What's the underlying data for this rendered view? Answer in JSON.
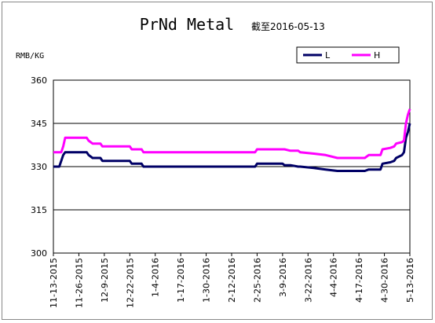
{
  "chart_data": {
    "type": "line",
    "title": "PrNd Metal",
    "subtitle": "截至2016-05-13",
    "y_label": "RMB/KG",
    "x": [
      "11-13-2015",
      "11-16-2015",
      "11-17-2015",
      "11-18-2015",
      "11-19-2015",
      "11-30-2015",
      "12-1-2015",
      "12-3-2015",
      "12-7-2015",
      "12-8-2015",
      "12-22-2015",
      "12-23-2015",
      "12-28-2015",
      "12-29-2015",
      "2-24-2016",
      "2-25-2016",
      "3-9-2016",
      "3-10-2016",
      "3-13-2016",
      "3-17-2016",
      "3-18-2016",
      "3-25-2016",
      "3-31-2016",
      "4-6-2016",
      "4-20-2016",
      "4-22-2016",
      "4-28-2016",
      "4-29-2016",
      "5-3-2016",
      "5-5-2016",
      "5-6-2016",
      "5-9-2016",
      "5-10-2016",
      "5-11-2016",
      "5-12-2016",
      "5-13-2016"
    ],
    "series": [
      {
        "name": "L",
        "color": "#000066",
        "values": [
          330,
          330,
          332,
          334,
          335,
          335,
          334,
          333,
          333,
          332,
          332,
          331,
          331,
          330,
          330,
          331,
          331,
          330.5,
          330.5,
          330,
          330,
          329.5,
          329,
          328.5,
          328.5,
          329,
          329,
          331,
          331.5,
          332,
          333,
          334,
          335,
          340,
          342,
          345
        ]
      },
      {
        "name": "H",
        "color": "#ff00ff",
        "values": [
          335,
          335,
          335,
          337,
          340,
          340,
          339,
          338,
          338,
          337,
          337,
          336,
          336,
          335,
          335,
          336,
          336,
          336,
          335.5,
          335.5,
          335,
          334.5,
          334,
          333,
          333,
          334,
          334,
          336,
          336.5,
          337,
          338,
          338.5,
          339,
          345,
          348,
          350
        ]
      }
    ],
    "xticks": [
      "11-13-2015",
      "11-26-2015",
      "12-9-2015",
      "12-22-2015",
      "1-4-2016",
      "1-17-2016",
      "1-30-2016",
      "2-12-2016",
      "2-25-2016",
      "3-9-2016",
      "3-22-2016",
      "4-4-2016",
      "4-17-2016",
      "4-30-2016",
      "5-13-2016"
    ],
    "ylim": [
      300,
      360
    ],
    "yticks": [
      300,
      315,
      330,
      345,
      360
    ],
    "grid": true,
    "legend": "top-right"
  }
}
